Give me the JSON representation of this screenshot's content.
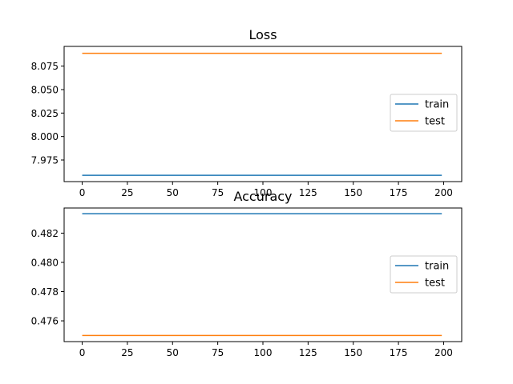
{
  "chart_data": [
    {
      "type": "line",
      "title": "Loss",
      "xlabel": "",
      "ylabel": "",
      "xlim": [
        -10,
        210
      ],
      "ylim": [
        7.952,
        8.096
      ],
      "xticks": [
        0,
        25,
        50,
        75,
        100,
        125,
        150,
        175,
        200
      ],
      "yticks": [
        7.975,
        8.0,
        8.025,
        8.05,
        8.075
      ],
      "ytick_labels": [
        "7.975",
        "8.000",
        "8.025",
        "8.050",
        "8.075"
      ],
      "grid": false,
      "legend_position": "center-right",
      "series": [
        {
          "name": "train",
          "color": "#1f77b4",
          "x": [
            0,
            199
          ],
          "y": [
            7.9587,
            7.9587
          ]
        },
        {
          "name": "test",
          "color": "#ff7f0e",
          "x": [
            0,
            199
          ],
          "y": [
            8.0887,
            8.0887
          ]
        }
      ]
    },
    {
      "type": "line",
      "title": "Accuracy",
      "xlabel": "",
      "ylabel": "",
      "xlim": [
        -10,
        210
      ],
      "ylim": [
        0.47458,
        0.48372
      ],
      "xticks": [
        0,
        25,
        50,
        75,
        100,
        125,
        150,
        175,
        200
      ],
      "yticks": [
        0.476,
        0.478,
        0.48,
        0.482
      ],
      "ytick_labels": [
        "0.476",
        "0.478",
        "0.480",
        "0.482"
      ],
      "grid": false,
      "legend_position": "center-right",
      "series": [
        {
          "name": "train",
          "color": "#1f77b4",
          "x": [
            0,
            199
          ],
          "y": [
            0.48333,
            0.48333
          ]
        },
        {
          "name": "test",
          "color": "#ff7f0e",
          "x": [
            0,
            199
          ],
          "y": [
            0.475,
            0.475
          ]
        }
      ]
    }
  ]
}
